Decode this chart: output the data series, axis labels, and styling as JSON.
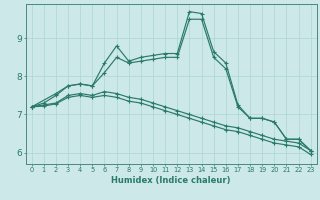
{
  "xlabel": "Humidex (Indice chaleur)",
  "background_color": "#cce8e8",
  "grid_color": "#b0d8d8",
  "line_color": "#2a7a6a",
  "xlim": [
    -0.5,
    23.5
  ],
  "ylim": [
    5.7,
    9.9
  ],
  "xticks": [
    0,
    1,
    2,
    3,
    4,
    5,
    6,
    7,
    8,
    9,
    10,
    11,
    12,
    13,
    14,
    15,
    16,
    17,
    18,
    19,
    20,
    21,
    22,
    23
  ],
  "yticks": [
    6,
    7,
    8,
    9
  ],
  "series": [
    {
      "x": [
        0,
        1,
        2,
        3,
        4,
        5,
        6,
        7,
        8,
        9,
        10,
        11,
        12,
        13,
        14,
        15,
        16,
        17,
        18,
        19,
        20,
        21,
        22,
        23
      ],
      "y": [
        7.2,
        7.3,
        7.5,
        7.75,
        7.8,
        7.75,
        8.35,
        8.8,
        8.4,
        8.5,
        8.55,
        8.6,
        8.6,
        9.7,
        9.65,
        8.65,
        8.35,
        7.25,
        6.9,
        6.9,
        6.8,
        6.35,
        6.35,
        6.05
      ]
    },
    {
      "x": [
        0,
        2,
        3,
        4,
        5,
        6,
        7,
        8,
        9,
        10,
        11,
        12,
        13,
        14,
        15,
        16,
        17,
        18,
        19,
        20,
        21,
        22,
        23
      ],
      "y": [
        7.2,
        7.55,
        7.75,
        7.8,
        7.75,
        8.1,
        8.5,
        8.35,
        8.4,
        8.45,
        8.5,
        8.5,
        9.5,
        9.5,
        8.5,
        8.2,
        7.2,
        6.9,
        6.9,
        6.8,
        6.35,
        6.35,
        6.05
      ]
    },
    {
      "x": [
        0,
        1,
        2,
        3,
        4,
        5,
        6,
        7,
        8,
        9,
        10,
        11,
        12,
        13,
        14,
        15,
        16,
        17,
        18,
        19,
        20,
        21,
        22,
        23
      ],
      "y": [
        7.2,
        7.25,
        7.3,
        7.5,
        7.55,
        7.5,
        7.6,
        7.55,
        7.45,
        7.4,
        7.3,
        7.2,
        7.1,
        7.0,
        6.9,
        6.8,
        6.7,
        6.65,
        6.55,
        6.45,
        6.35,
        6.3,
        6.25,
        6.05
      ]
    },
    {
      "x": [
        0,
        1,
        2,
        3,
        4,
        5,
        6,
        7,
        8,
        9,
        10,
        11,
        12,
        13,
        14,
        15,
        16,
        17,
        18,
        19,
        20,
        21,
        22,
        23
      ],
      "y": [
        7.2,
        7.22,
        7.28,
        7.45,
        7.5,
        7.45,
        7.5,
        7.45,
        7.35,
        7.3,
        7.2,
        7.1,
        7.0,
        6.9,
        6.8,
        6.7,
        6.6,
        6.55,
        6.45,
        6.35,
        6.25,
        6.2,
        6.15,
        5.95
      ]
    }
  ]
}
